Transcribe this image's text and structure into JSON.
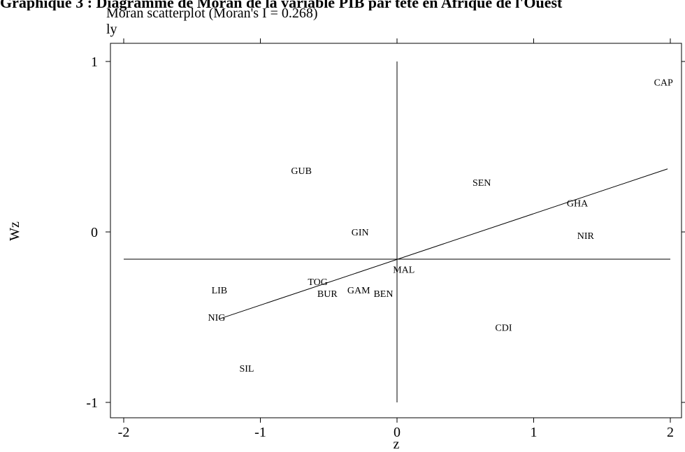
{
  "banner": "Graphique 3 : Diagramme de Moran de la variable PIB par tête en Afrique de l'Ouest",
  "chart_data": {
    "type": "scatter",
    "title": "Moran scatterplot (Moran's I = 0.268)",
    "subtitle": "ly",
    "xlabel": "z",
    "ylabel": "Wz",
    "xlim": [
      -2.1,
      2.1
    ],
    "ylim": [
      -1.1,
      1.1
    ],
    "xticks": [
      -2,
      -1,
      0,
      1,
      2
    ],
    "yticks": [
      -1,
      0,
      1
    ],
    "xtick_labels": [
      "-2",
      "-1",
      "0",
      "1",
      "2"
    ],
    "ytick_labels": [
      "-1",
      "0",
      "1"
    ],
    "points": [
      {
        "label": "CAP",
        "x": 1.95,
        "y": 0.88
      },
      {
        "label": "GUB",
        "x": -0.7,
        "y": 0.36
      },
      {
        "label": "SEN",
        "x": 0.62,
        "y": 0.29
      },
      {
        "label": "GHA",
        "x": 1.32,
        "y": 0.17
      },
      {
        "label": "GIN",
        "x": -0.27,
        "y": 0.0
      },
      {
        "label": "NIR",
        "x": 1.38,
        "y": -0.02
      },
      {
        "label": "MAL",
        "x": 0.05,
        "y": -0.22
      },
      {
        "label": "TOG",
        "x": -0.58,
        "y": -0.29
      },
      {
        "label": "LIB",
        "x": -1.3,
        "y": -0.34
      },
      {
        "label": "GAM",
        "x": -0.28,
        "y": -0.34
      },
      {
        "label": "BUR",
        "x": -0.51,
        "y": -0.36
      },
      {
        "label": "BEN",
        "x": -0.1,
        "y": -0.36
      },
      {
        "label": "NIG",
        "x": -1.32,
        "y": -0.5
      },
      {
        "label": "CDI",
        "x": 0.78,
        "y": -0.56
      },
      {
        "label": "SIL",
        "x": -1.1,
        "y": -0.8
      }
    ],
    "regression_line": {
      "x": [
        -1.3,
        1.98
      ],
      "y": [
        -0.51,
        0.37
      ]
    },
    "reference_lines": {
      "vertical_at_x": 0,
      "horizontal_at_y": -0.16
    }
  }
}
